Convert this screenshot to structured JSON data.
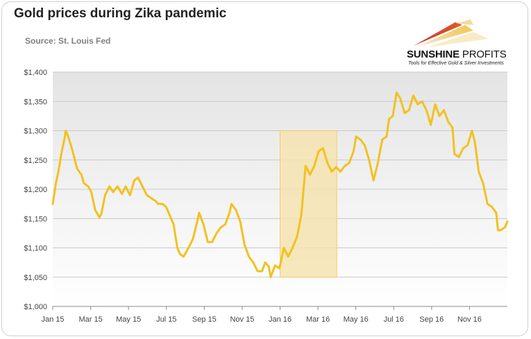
{
  "header": {
    "title": "Gold prices during Zika pandemic",
    "source": "Source: St. Louis Fed"
  },
  "logo": {
    "name_bold": "SUNSHINE",
    "name_light": "PROFITS",
    "tagline": "Tools for Effective Gold & Silver Investments",
    "colors": [
      "#c0392b",
      "#e8a33c",
      "#f2c94c"
    ]
  },
  "colors": {
    "line": "#f2c11f",
    "highlight_fill": "#f6e3b2",
    "highlight_stroke": "#f2cc66",
    "plot_bg_top": "#e6e6e6",
    "plot_bg_bottom": "#ffffff",
    "grid": "#c8c8c8"
  },
  "chart_data": {
    "type": "line",
    "title": "Gold prices during Zika pandemic",
    "subtitle": "Source: St. Louis Fed",
    "xlabel": "",
    "ylabel": "",
    "x_ticks": [
      "Jan 15",
      "Mar 15",
      "May 15",
      "Jul 15",
      "Sep 15",
      "Nov 15",
      "Jan 16",
      "Mar 16",
      "May 16",
      "Jul 16",
      "Sep 16",
      "Nov 16"
    ],
    "y_ticks": [
      "$1,000",
      "$1,050",
      "$1,100",
      "$1,150",
      "$1,200",
      "$1,250",
      "$1,300",
      "$1,350",
      "$1,400"
    ],
    "ylim": [
      1000,
      1400
    ],
    "xlim": [
      "2015-01-01",
      "2016-12-31"
    ],
    "grid": true,
    "highlight": {
      "from": "2016-01-01",
      "to": "2016-04-01",
      "y_from": 1050,
      "y_to": 1300
    },
    "series": [
      {
        "x": [
          "2015-01-01",
          "2015-01-06",
          "2015-01-10",
          "2015-01-15",
          "2015-01-20",
          "2015-01-22",
          "2015-01-26",
          "2015-02-02",
          "2015-02-09",
          "2015-02-16",
          "2015-02-20",
          "2015-02-27",
          "2015-03-04",
          "2015-03-10",
          "2015-03-17",
          "2015-03-20",
          "2015-03-26",
          "2015-04-02",
          "2015-04-08",
          "2015-04-15",
          "2015-04-22",
          "2015-04-28",
          "2015-05-05",
          "2015-05-12",
          "2015-05-18",
          "2015-05-25",
          "2015-06-01",
          "2015-06-08",
          "2015-06-15",
          "2015-06-19",
          "2015-06-26",
          "2015-07-02",
          "2015-07-08",
          "2015-07-14",
          "2015-07-20",
          "2015-07-24",
          "2015-07-30",
          "2015-08-07",
          "2015-08-14",
          "2015-08-21",
          "2015-08-24",
          "2015-08-31",
          "2015-09-07",
          "2015-09-14",
          "2015-09-21",
          "2015-09-28",
          "2015-10-05",
          "2015-10-12",
          "2015-10-15",
          "2015-10-22",
          "2015-10-29",
          "2015-11-05",
          "2015-11-12",
          "2015-11-19",
          "2015-11-26",
          "2015-12-03",
          "2015-12-08",
          "2015-12-14",
          "2015-12-17",
          "2015-12-24",
          "2015-12-31",
          "2016-01-07",
          "2016-01-14",
          "2016-01-21",
          "2016-01-28",
          "2016-02-04",
          "2016-02-11",
          "2016-02-18",
          "2016-02-25",
          "2016-03-03",
          "2016-03-10",
          "2016-03-17",
          "2016-03-24",
          "2016-03-31",
          "2016-04-07",
          "2016-04-14",
          "2016-04-21",
          "2016-04-28",
          "2016-05-02",
          "2016-05-09",
          "2016-05-16",
          "2016-05-23",
          "2016-05-30",
          "2016-06-06",
          "2016-06-13",
          "2016-06-20",
          "2016-06-24",
          "2016-06-30",
          "2016-07-06",
          "2016-07-12",
          "2016-07-19",
          "2016-07-26",
          "2016-08-02",
          "2016-08-09",
          "2016-08-16",
          "2016-08-23",
          "2016-08-30",
          "2016-09-06",
          "2016-09-13",
          "2016-09-20",
          "2016-09-27",
          "2016-10-04",
          "2016-10-07",
          "2016-10-14",
          "2016-10-21",
          "2016-10-28",
          "2016-11-04",
          "2016-11-09",
          "2016-11-15",
          "2016-11-22",
          "2016-11-29",
          "2016-12-06",
          "2016-12-13",
          "2016-12-16",
          "2016-12-20",
          "2016-12-27",
          "2016-12-31"
        ],
        "values": [
          1175,
          1210,
          1230,
          1262,
          1287,
          1300,
          1290,
          1265,
          1235,
          1225,
          1210,
          1205,
          1195,
          1165,
          1152,
          1158,
          1190,
          1205,
          1195,
          1205,
          1192,
          1205,
          1190,
          1215,
          1220,
          1205,
          1190,
          1185,
          1180,
          1175,
          1175,
          1170,
          1155,
          1140,
          1100,
          1090,
          1085,
          1100,
          1115,
          1145,
          1160,
          1140,
          1110,
          1110,
          1125,
          1135,
          1140,
          1160,
          1175,
          1165,
          1145,
          1105,
          1085,
          1075,
          1060,
          1060,
          1075,
          1068,
          1050,
          1070,
          1065,
          1100,
          1085,
          1100,
          1118,
          1155,
          1240,
          1225,
          1240,
          1265,
          1270,
          1245,
          1230,
          1238,
          1230,
          1240,
          1245,
          1265,
          1290,
          1285,
          1275,
          1250,
          1215,
          1245,
          1285,
          1290,
          1320,
          1325,
          1365,
          1355,
          1330,
          1335,
          1360,
          1345,
          1350,
          1335,
          1310,
          1345,
          1325,
          1335,
          1315,
          1305,
          1260,
          1255,
          1270,
          1275,
          1300,
          1280,
          1230,
          1210,
          1175,
          1170,
          1160,
          1130,
          1130,
          1135,
          1145
        ]
      }
    ]
  }
}
